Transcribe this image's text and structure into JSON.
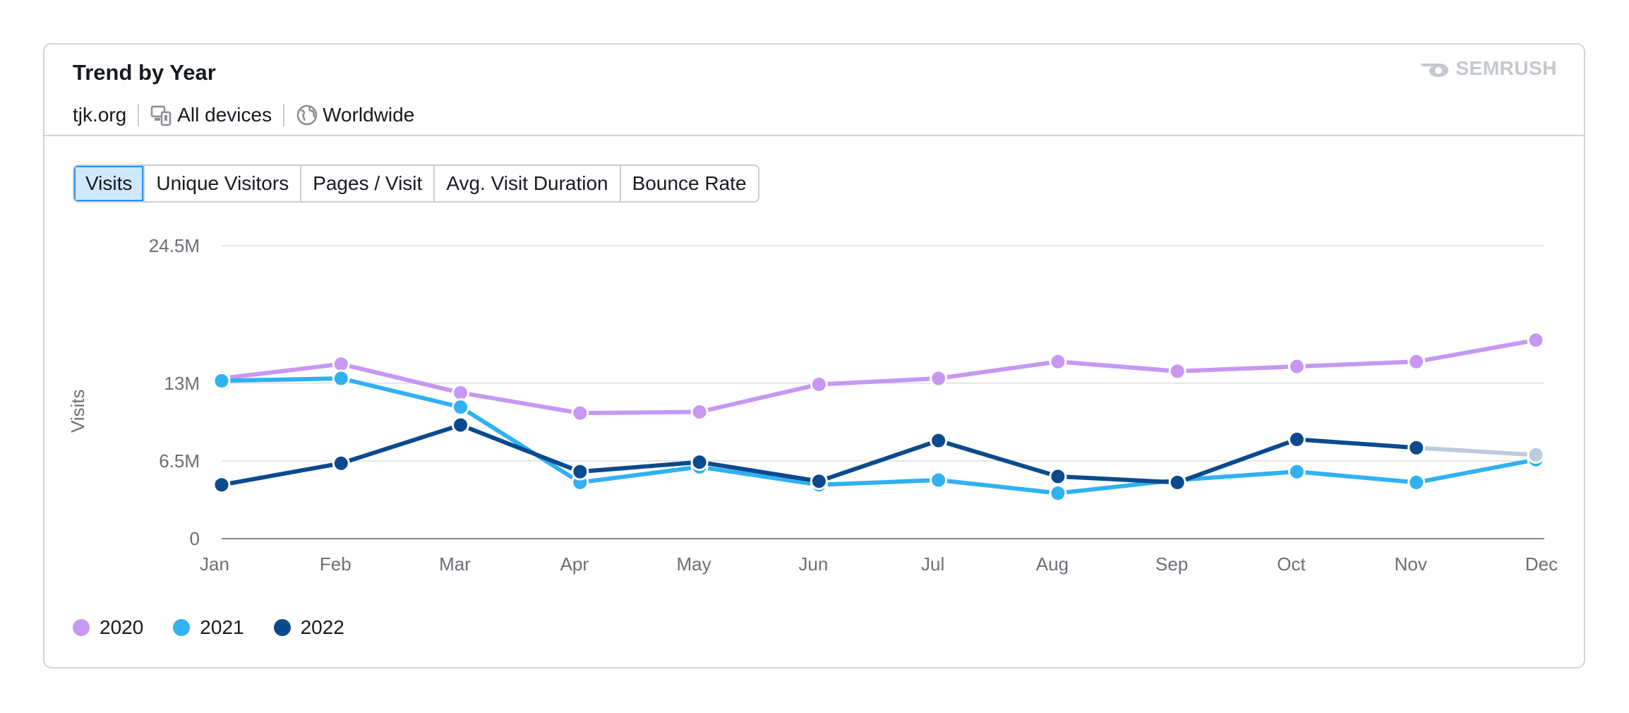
{
  "header": {
    "title": "Trend by Year",
    "domain": "tjk.org",
    "device_filter": "All devices",
    "region_filter": "Worldwide",
    "logo_text": "SEMRUSH"
  },
  "tabs": [
    {
      "label": "Visits",
      "active": true
    },
    {
      "label": "Unique Visitors",
      "active": false
    },
    {
      "label": "Pages / Visit",
      "active": false
    },
    {
      "label": "Avg. Visit Duration",
      "active": false
    },
    {
      "label": "Bounce Rate",
      "active": false
    }
  ],
  "colors": {
    "s2020": "#c797f2",
    "s2021": "#30b1f1",
    "s2022": "#0b4a8c",
    "incomplete": "#bccbdc",
    "grid": "#e3e5ea",
    "axis": "#888b94"
  },
  "chart_data": {
    "type": "line",
    "ylabel": "Visits",
    "xlabel": "",
    "ylim": [
      0,
      24.5
    ],
    "yticks": [
      0,
      6.5,
      13,
      24.5
    ],
    "ytick_labels": [
      "0",
      "6.5M",
      "13M",
      "24.5M"
    ],
    "categories": [
      "Jan",
      "Feb",
      "Mar",
      "Apr",
      "May",
      "Jun",
      "Jul",
      "Aug",
      "Sep",
      "Oct",
      "Nov",
      "Dec"
    ],
    "unit": "M",
    "grid": true,
    "legend_position": "bottom-left",
    "series": [
      {
        "name": "2020",
        "color": "#c797f2",
        "values": [
          13.4,
          14.6,
          12.2,
          10.5,
          10.6,
          12.9,
          13.4,
          14.8,
          14.0,
          14.4,
          14.8,
          16.6
        ]
      },
      {
        "name": "2021",
        "color": "#30b1f1",
        "values": [
          13.2,
          13.4,
          11.0,
          4.7,
          6.0,
          4.5,
          4.9,
          3.8,
          4.9,
          5.6,
          4.7,
          6.6
        ]
      },
      {
        "name": "2022",
        "color": "#0b4a8c",
        "values": [
          4.5,
          6.3,
          9.5,
          5.6,
          6.4,
          4.8,
          8.2,
          5.2,
          4.7,
          8.3,
          7.6,
          7.0
        ],
        "incomplete_last": true
      }
    ]
  }
}
